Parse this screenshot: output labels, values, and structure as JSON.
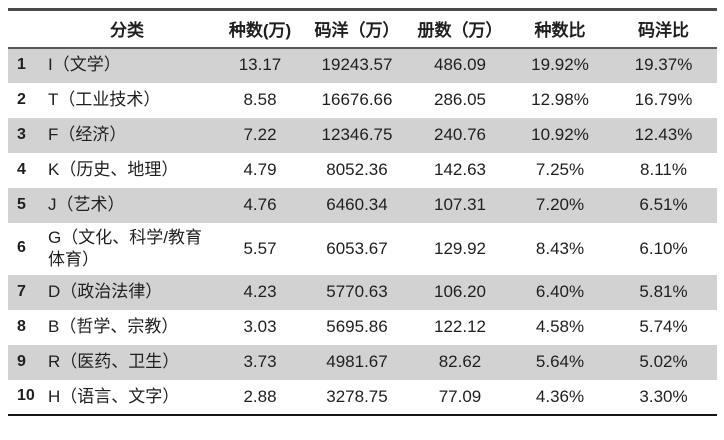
{
  "colors": {
    "band": "#d2d2d2",
    "line_top": "#4a4a4a",
    "line_mid": "#585858",
    "line_bottom": "#161616",
    "text": "#1f1f1f"
  },
  "table": {
    "columns": {
      "rank": "",
      "category": "分类",
      "species": "种数(万)",
      "value": "码洋（万）",
      "copies": "册数（万）",
      "species_pct": "种数比",
      "value_pct": "码洋比"
    },
    "rows": [
      {
        "rank": "1",
        "category": "I（文学）",
        "species": "13.17",
        "value": "19243.57",
        "copies": "486.09",
        "species_pct": "19.92%",
        "value_pct": "19.37%"
      },
      {
        "rank": "2",
        "category": "T（工业技术）",
        "species": "8.58",
        "value": "16676.66",
        "copies": "286.05",
        "species_pct": "12.98%",
        "value_pct": "16.79%"
      },
      {
        "rank": "3",
        "category": "F（经济）",
        "species": "7.22",
        "value": "12346.75",
        "copies": "240.76",
        "species_pct": "10.92%",
        "value_pct": "12.43%"
      },
      {
        "rank": "4",
        "category": "K（历史、地理）",
        "species": "4.79",
        "value": "8052.36",
        "copies": "142.63",
        "species_pct": "7.25%",
        "value_pct": "8.11%"
      },
      {
        "rank": "5",
        "category": "J（艺术）",
        "species": "4.76",
        "value": "6460.34",
        "copies": "107.31",
        "species_pct": "7.20%",
        "value_pct": "6.51%"
      },
      {
        "rank": "6",
        "category": "G（文化、科学/教育体育）",
        "species": "5.57",
        "value": "6053.67",
        "copies": "129.92",
        "species_pct": "8.43%",
        "value_pct": "6.10%"
      },
      {
        "rank": "7",
        "category": "D（政治法律）",
        "species": "4.23",
        "value": "5770.63",
        "copies": "106.20",
        "species_pct": "6.40%",
        "value_pct": "5.81%"
      },
      {
        "rank": "8",
        "category": "B（哲学、宗教）",
        "species": "3.03",
        "value": "5695.86",
        "copies": "122.12",
        "species_pct": "4.58%",
        "value_pct": "5.74%"
      },
      {
        "rank": "9",
        "category": "R（医药、卫生）",
        "species": "3.73",
        "value": "4981.67",
        "copies": "82.62",
        "species_pct": "5.64%",
        "value_pct": "5.02%"
      },
      {
        "rank": "10",
        "category": "H（语言、文字）",
        "species": "2.88",
        "value": "3278.75",
        "copies": "77.09",
        "species_pct": "4.36%",
        "value_pct": "3.30%"
      }
    ]
  }
}
